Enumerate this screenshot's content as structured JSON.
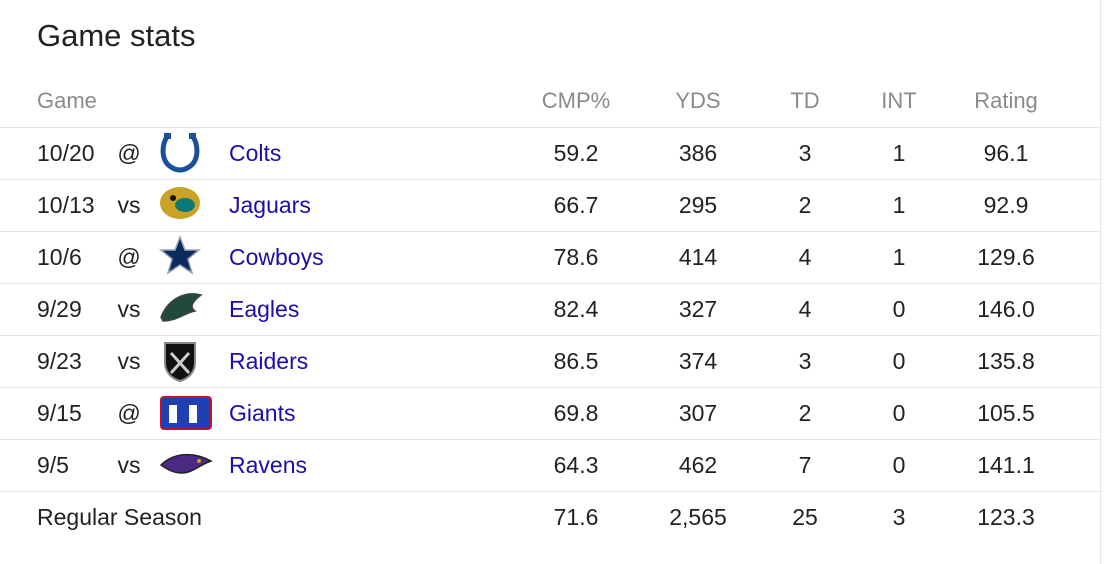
{
  "header": {
    "title": "Game stats",
    "columns": [
      "Game",
      "CMP%",
      "YDS",
      "TD",
      "INT",
      "Rating"
    ]
  },
  "table": {
    "rows": [
      [
        "10/20",
        "@",
        "Colts",
        "59.2",
        "386",
        "3",
        "1",
        "96.1"
      ],
      [
        "10/13",
        "vs",
        "Jaguars",
        "66.7",
        "295",
        "2",
        "1",
        "92.9"
      ],
      [
        "10/6",
        "@",
        "Cowboys",
        "78.6",
        "414",
        "4",
        "1",
        "129.6"
      ],
      [
        "9/29",
        "vs",
        "Eagles",
        "82.4",
        "327",
        "4",
        "0",
        "146.0"
      ],
      [
        "9/23",
        "vs",
        "Raiders",
        "86.5",
        "374",
        "3",
        "0",
        "135.8"
      ],
      [
        "9/15",
        "@",
        "Giants",
        "69.8",
        "307",
        "2",
        "0",
        "105.5"
      ],
      [
        "9/5",
        "vs",
        "Ravens",
        "64.3",
        "462",
        "7",
        "0",
        "141.1"
      ]
    ],
    "total": [
      "Regular Season",
      "71.6",
      "2,565",
      "25",
      "3",
      "123.3"
    ]
  }
}
